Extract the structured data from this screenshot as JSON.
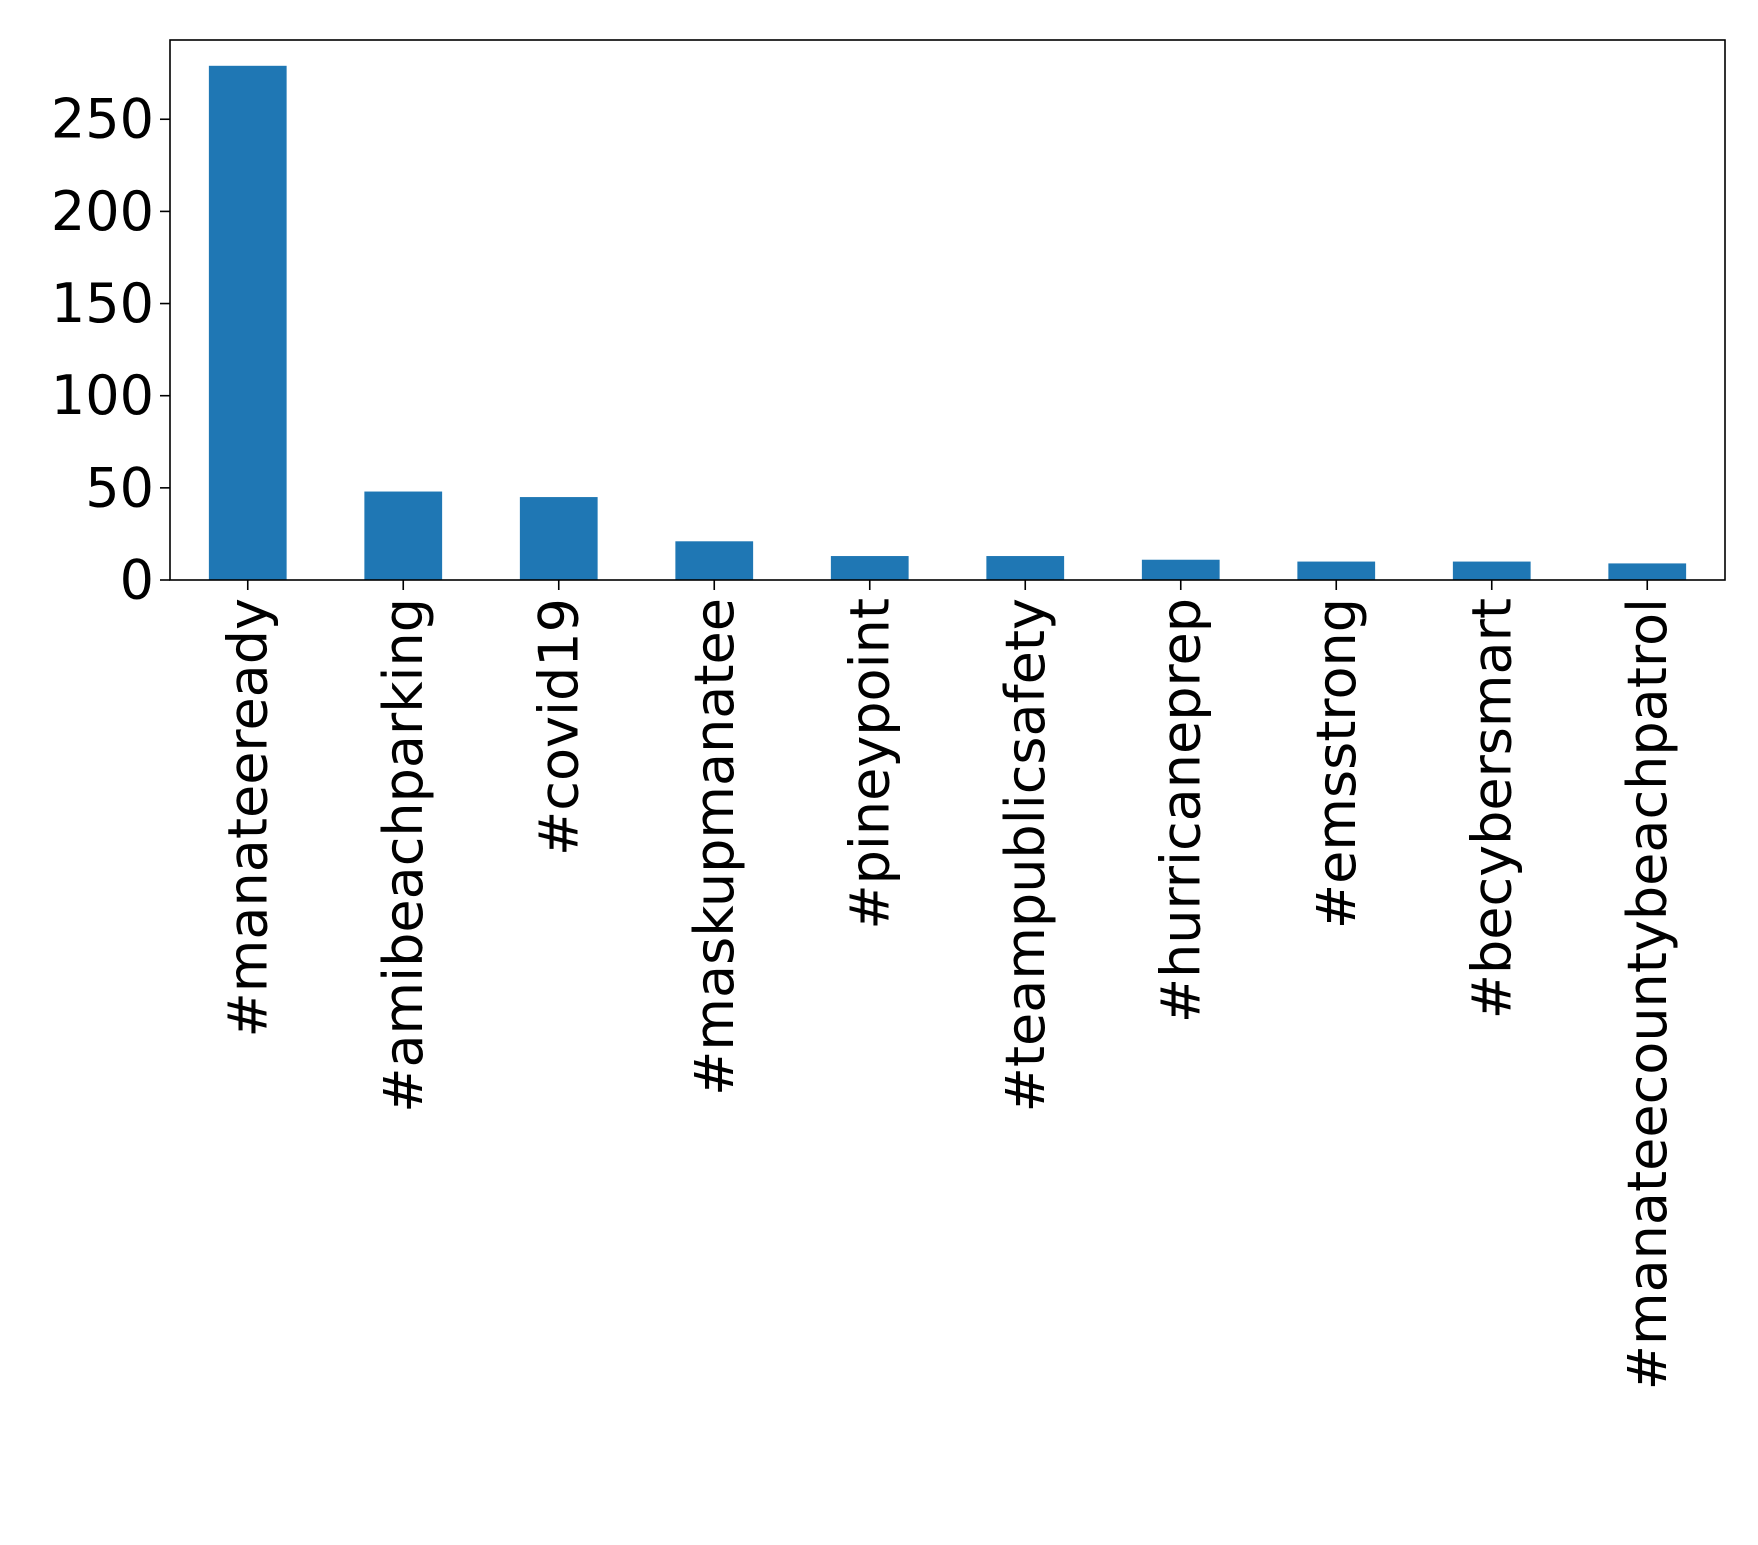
{
  "chart_data": {
    "type": "bar",
    "categories": [
      "#manateeready",
      "#amibeachparking",
      "#covid19",
      "#maskupmanatee",
      "#pineypoint",
      "#teampublicsafety",
      "#hurricaneprep",
      "#emsstrong",
      "#becybersmart",
      "#manateecountybeachpatrol"
    ],
    "values": [
      279,
      48,
      45,
      21,
      13,
      13,
      11,
      10,
      10,
      9
    ],
    "title": "",
    "xlabel": "",
    "ylabel": "",
    "ylim": [
      0,
      293
    ],
    "yticks": [
      0,
      50,
      100,
      150,
      200,
      250
    ],
    "ytick_labels": [
      "0",
      "50",
      "100",
      "150",
      "200",
      "250"
    ],
    "grid": false,
    "legend": "none",
    "bar_color": "#1f77b4"
  }
}
